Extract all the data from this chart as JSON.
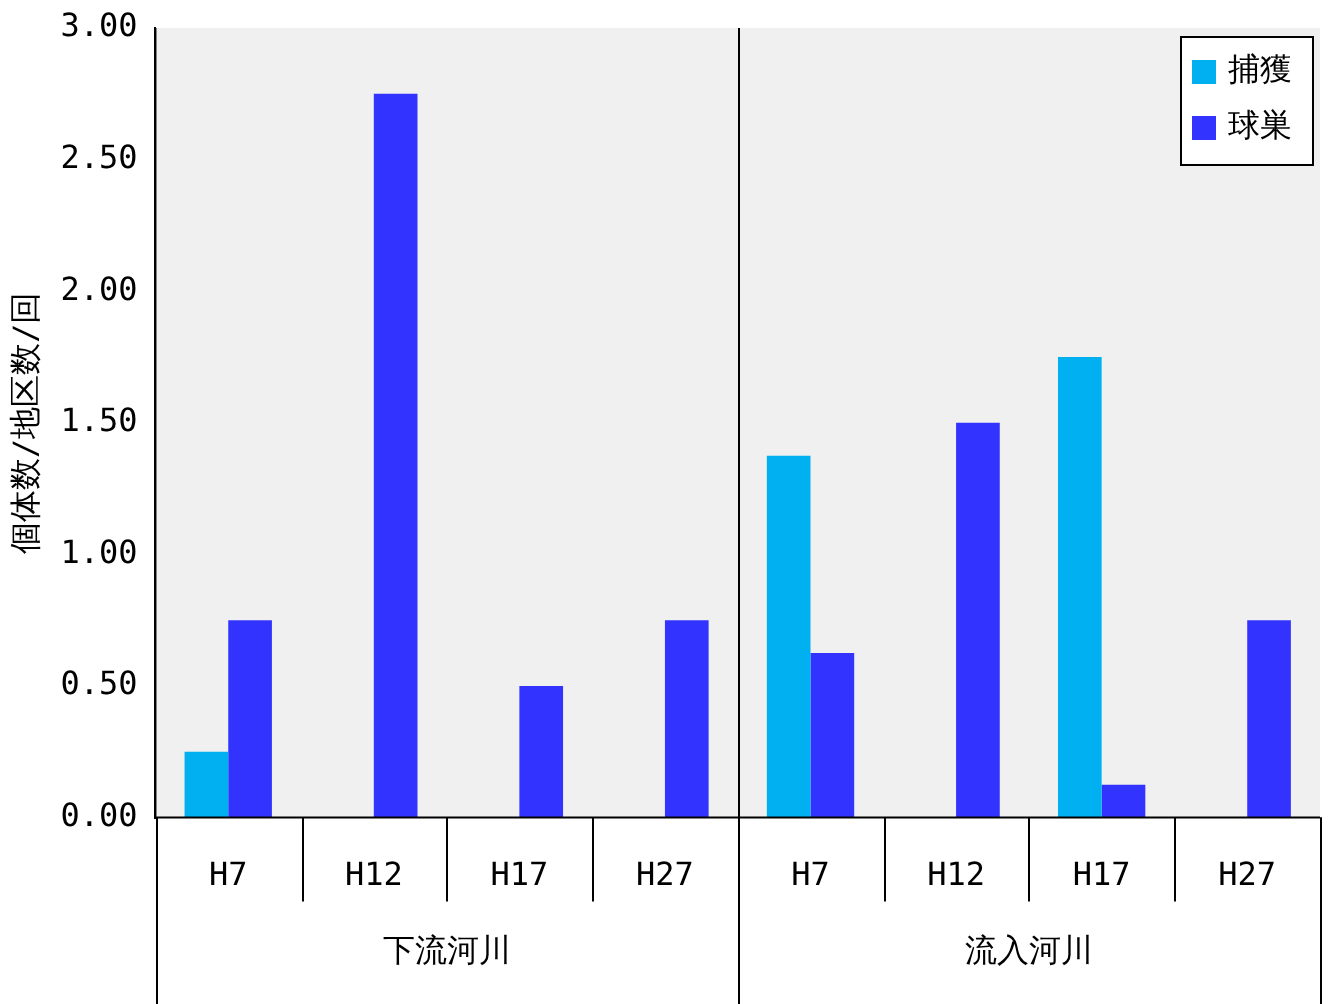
{
  "chart_data": {
    "type": "bar",
    "ylabel": "個体数/地区数/回",
    "categories": [
      "H7",
      "H12",
      "H17",
      "H27",
      "H7",
      "H12",
      "H17",
      "H27"
    ],
    "annotations": [
      "下流河川",
      "流入河川"
    ],
    "series": [
      {
        "name": "捕獲",
        "color": "#00b0f0",
        "values": [
          0.25,
          0,
          0,
          0,
          1.375,
          0,
          1.75,
          0
        ]
      },
      {
        "name": "球巣",
        "color": "#3333ff",
        "values": [
          0.75,
          2.75,
          0.5,
          0.75,
          0.625,
          1.5,
          0.125,
          0.75
        ]
      }
    ],
    "ylim": [
      0,
      3
    ],
    "yticks": [
      {
        "value": 0,
        "label": "0.00"
      },
      {
        "value": 0.5,
        "label": "0.50"
      },
      {
        "value": 1,
        "label": "1.00"
      },
      {
        "value": 1.5,
        "label": "1.50"
      },
      {
        "value": 2,
        "label": "2.00"
      },
      {
        "value": 2.5,
        "label": "2.50"
      },
      {
        "value": 3,
        "label": "3.00"
      }
    ],
    "grid": false,
    "legend": "top right"
  }
}
